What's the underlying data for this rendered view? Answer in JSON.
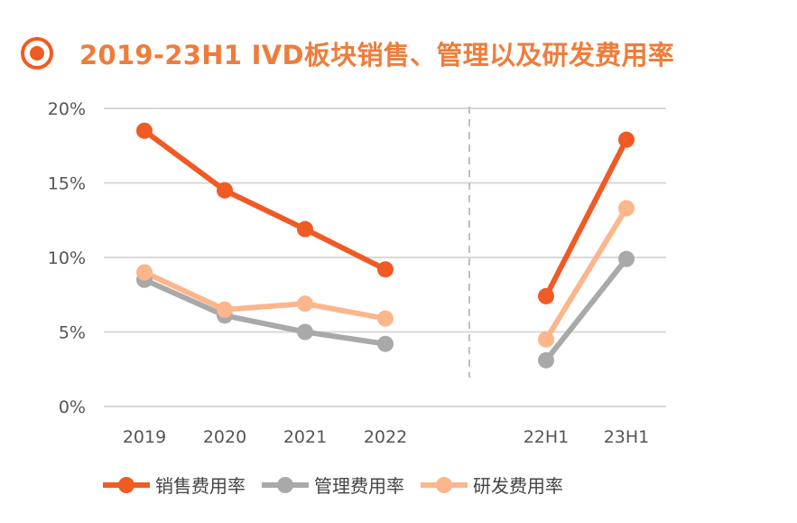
{
  "title": "2019-23H1  IVD板块销售、管理以及研发费用率",
  "colors": {
    "title": "#ee7d3b",
    "sales": "#f05a24",
    "admin": "#a9a9a9",
    "rd": "#fbb68c",
    "grid": "#d9d9d9",
    "divider": "#bfbfbf"
  },
  "chart_data": {
    "type": "line",
    "title": "2019-23H1  IVD板块销售、管理以及研发费用率",
    "xlabel": "",
    "ylabel": "",
    "ylim": [
      0,
      20
    ],
    "yticks": [
      "0%",
      "5%",
      "10%",
      "15%",
      "20%"
    ],
    "grid": true,
    "legend_position": "bottom",
    "groups": [
      {
        "categories": [
          "2019",
          "2020",
          "2021",
          "2022"
        ],
        "series": [
          {
            "name": "销售费用率",
            "key": "sales",
            "values": [
              18.5,
              14.5,
              11.9,
              9.2
            ]
          },
          {
            "name": "管理费用率",
            "key": "admin",
            "values": [
              8.5,
              6.1,
              5.0,
              4.2
            ]
          },
          {
            "name": "研发费用率",
            "key": "rd",
            "values": [
              9.0,
              6.5,
              6.9,
              5.9
            ]
          }
        ]
      },
      {
        "categories": [
          "22H1",
          "23H1"
        ],
        "series": [
          {
            "name": "销售费用率",
            "key": "sales",
            "values": [
              7.4,
              17.9
            ]
          },
          {
            "name": "管理费用率",
            "key": "admin",
            "values": [
              3.1,
              9.9
            ]
          },
          {
            "name": "研发费用率",
            "key": "rd",
            "values": [
              4.5,
              13.3
            ]
          }
        ]
      }
    ]
  },
  "legend": [
    {
      "label": "销售费用率",
      "key": "sales"
    },
    {
      "label": "管理费用率",
      "key": "admin"
    },
    {
      "label": "研发费用率",
      "key": "rd"
    }
  ]
}
